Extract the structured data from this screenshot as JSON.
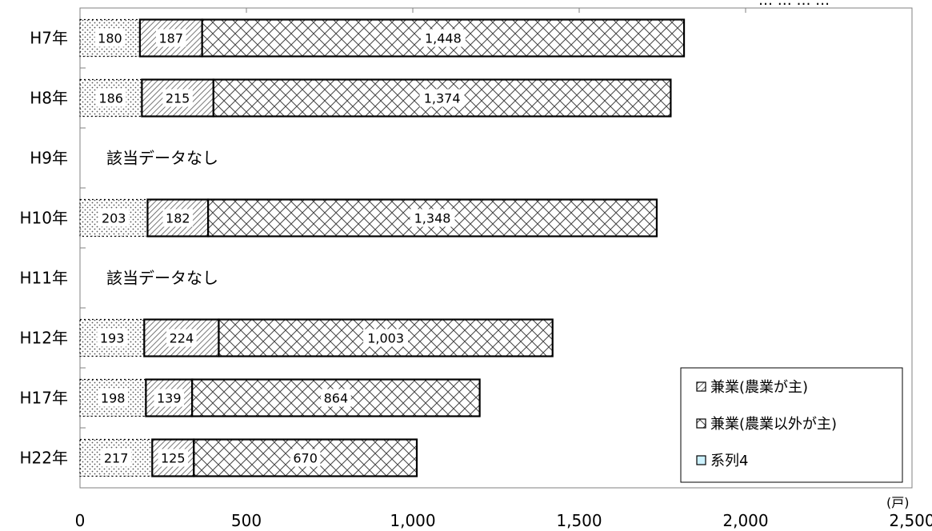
{
  "chart_data": {
    "type": "bar",
    "orientation": "horizontal",
    "stacked": true,
    "categories": [
      "H7年",
      "H8年",
      "H9年",
      "H10年",
      "H11年",
      "H12年",
      "H17年",
      "H22年"
    ],
    "series": [
      {
        "name": "",
        "values": [
          180,
          186,
          null,
          203,
          null,
          193,
          198,
          217
        ],
        "color": "#ffffff",
        "pattern": "dots"
      },
      {
        "name": "兼業(農業が主)",
        "values": [
          187,
          215,
          null,
          182,
          null,
          224,
          139,
          125
        ],
        "color": "#ffffff",
        "pattern": "diagonal"
      },
      {
        "name": "兼業(農業以外が主)",
        "values": [
          1448,
          1374,
          null,
          1348,
          null,
          1003,
          864,
          670
        ],
        "color": "#ffffff",
        "pattern": "crosshatch"
      }
    ],
    "value_labels": [
      [
        "180",
        "187",
        "1,448"
      ],
      [
        "186",
        "215",
        "1,374"
      ],
      null,
      [
        "203",
        "182",
        "1,348"
      ],
      null,
      [
        "193",
        "224",
        "1,003"
      ],
      [
        "198",
        "139",
        "864"
      ],
      [
        "217",
        "125",
        "670"
      ]
    ],
    "no_data_note": "該当データなし",
    "xlim": [
      0,
      2500
    ],
    "x_ticks": [
      0,
      500,
      1000,
      1500,
      2000,
      2500
    ],
    "x_tick_labels": [
      "0",
      "500",
      "1,000",
      "1,500",
      "2,000",
      "2,500"
    ],
    "x_unit": "(戸)",
    "header_partial": "…   …   …  …",
    "legend": {
      "position": "bottom-right",
      "entries": [
        "兼業(農業が主)",
        "兼業(農業以外が主)",
        "系列4"
      ],
      "markers": [
        "diagonal",
        "crosshatch",
        "light-blue"
      ],
      "series4_color": "#ccf2ff"
    },
    "grid": false
  }
}
